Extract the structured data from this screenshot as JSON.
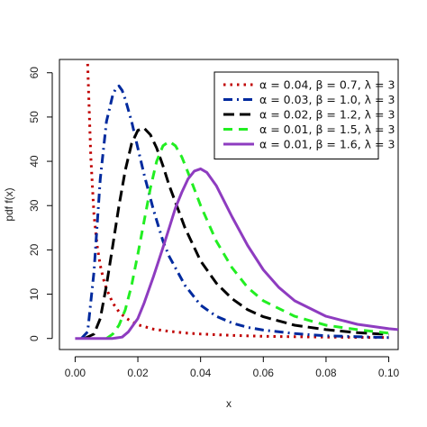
{
  "chart_data": {
    "type": "line",
    "xlabel": "x",
    "ylabel": "pdf f(x)",
    "xlim": [
      -0.005,
      0.103
    ],
    "ylim": [
      -2.5,
      63
    ],
    "xticks": [
      0.0,
      0.02,
      0.04,
      0.06,
      0.08,
      0.1
    ],
    "xtick_labels": [
      "0.00",
      "0.02",
      "0.04",
      "0.06",
      "0.08",
      "0.10"
    ],
    "yticks": [
      0,
      10,
      20,
      30,
      40,
      50,
      60
    ],
    "ytick_labels": [
      "0",
      "10",
      "20",
      "30",
      "40",
      "50",
      "60"
    ],
    "grid": false,
    "legend_position": "top-right",
    "series": [
      {
        "name": "α = 0.04, β = 0.7, λ = 3",
        "color": "#c00000",
        "dash": "dotted",
        "x": [
          0.004,
          0.005,
          0.006,
          0.007,
          0.008,
          0.009,
          0.01,
          0.012,
          0.014,
          0.016,
          0.018,
          0.02,
          0.025,
          0.03,
          0.035,
          0.04,
          0.05,
          0.06,
          0.07,
          0.08,
          0.09,
          0.1
        ],
        "y": [
          62,
          41,
          28,
          21,
          16.5,
          13.5,
          11.2,
          8.0,
          6.0,
          4.7,
          3.8,
          3.1,
          2.1,
          1.6,
          1.25,
          1.0,
          0.7,
          0.5,
          0.38,
          0.3,
          0.24,
          0.2
        ]
      },
      {
        "name": "α = 0.03, β = 1.0, λ = 3",
        "color": "#002a9e",
        "dash": "dashdot",
        "x": [
          0.002,
          0.004,
          0.006,
          0.008,
          0.01,
          0.012,
          0.013,
          0.014,
          0.015,
          0.016,
          0.018,
          0.02,
          0.022,
          0.025,
          0.028,
          0.03,
          0.035,
          0.04,
          0.045,
          0.05,
          0.055,
          0.06,
          0.07,
          0.08,
          0.09,
          0.1
        ],
        "y": [
          0,
          1.5,
          15,
          36,
          49,
          55,
          56.5,
          57,
          56,
          54,
          49,
          43,
          37,
          29,
          22,
          18.5,
          12,
          7.5,
          5,
          3.5,
          2.5,
          1.9,
          1.1,
          0.6,
          0.4,
          0.2
        ]
      },
      {
        "name": "α = 0.02, β = 1.2, λ = 3",
        "color": "#000000",
        "dash": "longdash",
        "x": [
          0.003,
          0.006,
          0.008,
          0.01,
          0.012,
          0.014,
          0.016,
          0.018,
          0.02,
          0.022,
          0.024,
          0.026,
          0.028,
          0.03,
          0.035,
          0.04,
          0.045,
          0.05,
          0.055,
          0.06,
          0.07,
          0.08,
          0.09,
          0.1
        ],
        "y": [
          0,
          1,
          4.5,
          12,
          21,
          30,
          38,
          44,
          47,
          47.5,
          46,
          43,
          39,
          34.5,
          25,
          17.5,
          12.5,
          9,
          6.5,
          4.9,
          3.0,
          2.0,
          1.3,
          0.9
        ]
      },
      {
        "name": "α = 0.01, β = 1.5, λ = 3",
        "color": "#22ee22",
        "dash": "dashed",
        "x": [
          0.01,
          0.012,
          0.014,
          0.016,
          0.018,
          0.02,
          0.022,
          0.024,
          0.026,
          0.028,
          0.03,
          0.032,
          0.034,
          0.036,
          0.04,
          0.045,
          0.05,
          0.055,
          0.06,
          0.07,
          0.08,
          0.09,
          0.1
        ],
        "y": [
          0,
          1,
          3,
          6.5,
          12,
          19,
          26.5,
          34,
          40,
          43.5,
          44.5,
          43.5,
          41,
          37.5,
          30,
          22,
          16,
          11.5,
          8.5,
          5,
          3,
          2,
          1.2
        ]
      },
      {
        "name": "α = 0.01, β = 1.6, λ = 3",
        "color": "#8e3cc0",
        "dash": "solid",
        "x": [
          0.0,
          0.012,
          0.015,
          0.017,
          0.02,
          0.022,
          0.025,
          0.028,
          0.03,
          0.032,
          0.034,
          0.036,
          0.038,
          0.04,
          0.042,
          0.045,
          0.05,
          0.055,
          0.06,
          0.065,
          0.07,
          0.08,
          0.09,
          0.1,
          0.103
        ],
        "y": [
          0,
          0,
          0.3,
          1.5,
          4.5,
          8,
          14,
          20.5,
          25,
          29.5,
          33,
          36,
          37.8,
          38.3,
          37.5,
          34.5,
          27.5,
          21,
          15.5,
          11.5,
          8.5,
          5,
          3.2,
          2.2,
          2.0
        ]
      }
    ]
  }
}
